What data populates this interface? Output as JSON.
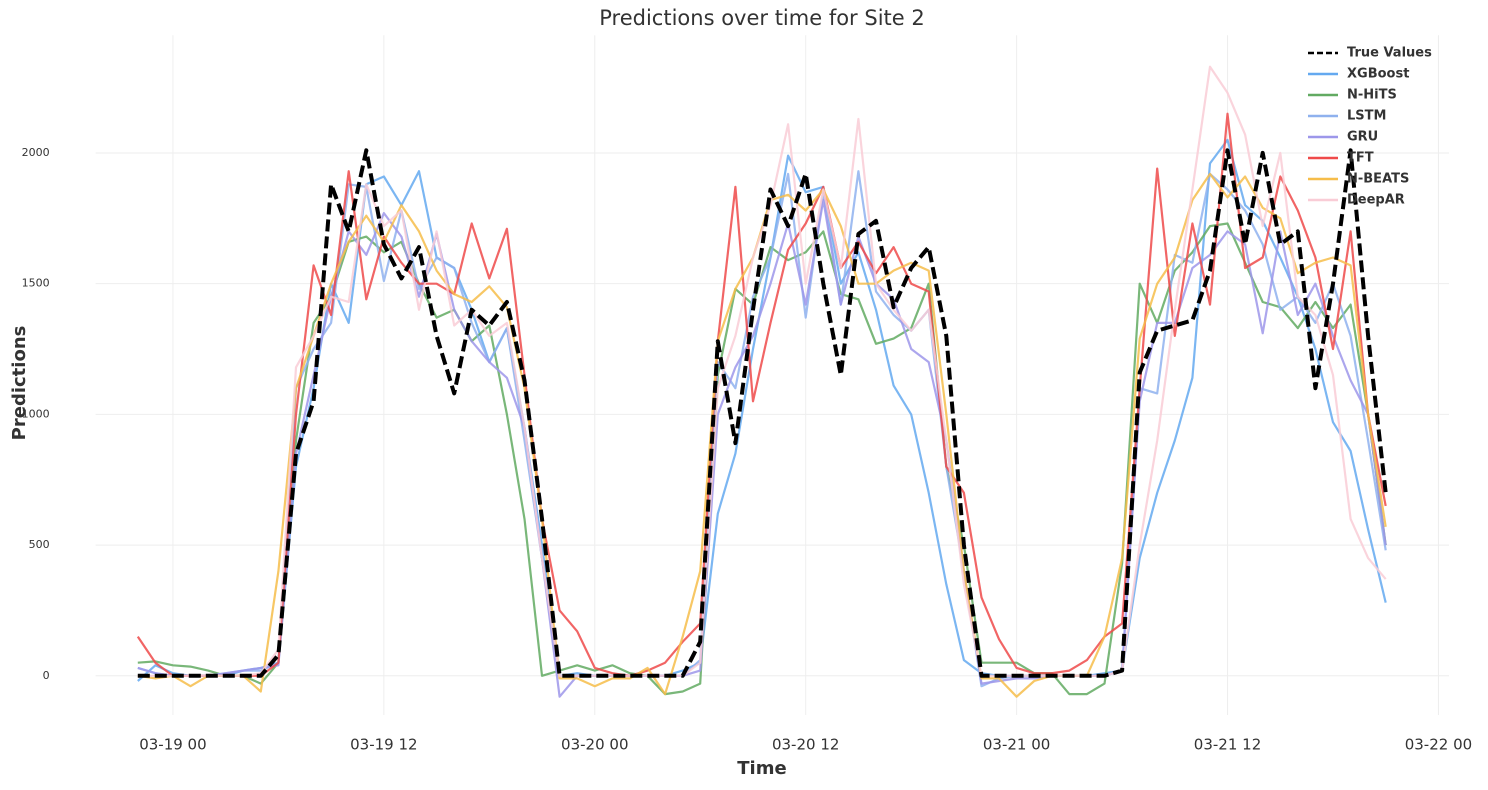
{
  "chart_data": {
    "type": "line",
    "title": "Predictions over time for Site 2",
    "x_label": "Time",
    "y_label": "Predictions",
    "x": [
      -2,
      -1,
      0,
      1,
      2,
      3,
      4,
      5,
      6,
      7,
      8,
      9,
      10,
      11,
      12,
      13,
      14,
      15,
      16,
      17,
      18,
      19,
      20,
      21,
      22,
      23,
      24,
      25,
      26,
      27,
      28,
      29,
      30,
      31,
      32,
      33,
      34,
      35,
      36,
      37,
      38,
      39,
      40,
      41,
      42,
      43,
      44,
      45,
      46,
      47,
      48,
      49,
      50,
      51,
      52,
      53,
      54,
      55,
      56,
      57,
      58,
      59,
      60,
      61,
      62,
      63,
      64,
      65,
      66,
      67,
      68,
      69
    ],
    "xlim": [
      -4.4,
      72.6
    ],
    "xticks": [
      {
        "value": 0,
        "label": "03-19 00"
      },
      {
        "value": 12,
        "label": "03-19 12"
      },
      {
        "value": 24,
        "label": "03-20 00"
      },
      {
        "value": 36,
        "label": "03-20 12"
      },
      {
        "value": 48,
        "label": "03-21 00"
      },
      {
        "value": 60,
        "label": "03-21 12"
      },
      {
        "value": 72,
        "label": "03-22 00"
      }
    ],
    "ylim": [
      -150,
      2450
    ],
    "yticks": [
      0,
      500,
      1000,
      1500,
      2000
    ],
    "grid": true,
    "legend": "upper right",
    "series": [
      {
        "name": "True Values",
        "color": "#000000",
        "style": "dashed",
        "values": [
          0,
          0,
          0,
          0,
          0,
          0,
          0,
          0,
          80,
          850,
          1050,
          1880,
          1700,
          2010,
          1650,
          1520,
          1640,
          1300,
          1080,
          1400,
          1340,
          1430,
          1130,
          600,
          0,
          0,
          0,
          0,
          0,
          0,
          0,
          0,
          130,
          1280,
          890,
          1400,
          1860,
          1720,
          1920,
          1500,
          1150,
          1690,
          1740,
          1410,
          1560,
          1640,
          1300,
          500,
          0,
          0,
          0,
          0,
          0,
          0,
          0,
          0,
          20,
          1160,
          1320,
          1340,
          1360,
          1550,
          2010,
          1650,
          2000,
          1650,
          1700,
          1100,
          1500,
          2010,
          1300,
          700
        ]
      },
      {
        "name": "XGBoost",
        "color": "#64a9f0",
        "style": "solid",
        "values": [
          -20,
          40,
          10,
          0,
          0,
          0,
          20,
          30,
          50,
          800,
          1100,
          1500,
          1350,
          1880,
          1910,
          1800,
          1930,
          1600,
          1560,
          1400,
          1200,
          1330,
          950,
          500,
          0,
          10,
          0,
          0,
          0,
          0,
          0,
          20,
          50,
          620,
          850,
          1250,
          1600,
          1990,
          1850,
          1870,
          1500,
          1620,
          1400,
          1110,
          1000,
          700,
          350,
          60,
          10,
          0,
          0,
          0,
          0,
          0,
          0,
          10,
          20,
          450,
          700,
          900,
          1140,
          1960,
          2050,
          1800,
          1740,
          1600,
          1450,
          1250,
          970,
          860,
          560,
          280
        ]
      },
      {
        "name": "N-HiTS",
        "color": "#62aa62",
        "style": "solid",
        "values": [
          50,
          55,
          40,
          35,
          20,
          0,
          0,
          -30,
          50,
          900,
          1350,
          1450,
          1660,
          1680,
          1620,
          1660,
          1500,
          1370,
          1400,
          1280,
          1340,
          1000,
          600,
          0,
          20,
          40,
          20,
          40,
          10,
          0,
          -70,
          -60,
          -30,
          1150,
          1480,
          1420,
          1640,
          1590,
          1620,
          1700,
          1460,
          1440,
          1270,
          1290,
          1330,
          1500,
          800,
          500,
          50,
          50,
          50,
          10,
          10,
          -70,
          -70,
          -30,
          430,
          1500,
          1350,
          1550,
          1620,
          1720,
          1730,
          1580,
          1430,
          1410,
          1330,
          1430,
          1330,
          1420,
          1000,
          500
        ]
      },
      {
        "name": "LSTM",
        "color": "#8fb1ee",
        "style": "solid",
        "values": [
          30,
          10,
          0,
          0,
          0,
          10,
          20,
          20,
          50,
          1100,
          1250,
          1350,
          1880,
          1870,
          1510,
          1780,
          1480,
          1600,
          1560,
          1350,
          1200,
          1330,
          900,
          450,
          0,
          0,
          0,
          0,
          0,
          0,
          0,
          0,
          60,
          1200,
          1100,
          1450,
          1600,
          1920,
          1370,
          1850,
          1420,
          1930,
          1470,
          1380,
          1320,
          1400,
          800,
          400,
          -40,
          -10,
          0,
          0,
          0,
          0,
          0,
          0,
          20,
          1100,
          1080,
          1610,
          1580,
          1920,
          1860,
          1780,
          1650,
          1400,
          1450,
          1350,
          1500,
          1300,
          900,
          480
        ]
      },
      {
        "name": "GRU",
        "color": "#9d97ea",
        "style": "solid",
        "values": [
          30,
          10,
          0,
          0,
          0,
          10,
          20,
          30,
          40,
          850,
          1150,
          1450,
          1700,
          1610,
          1770,
          1680,
          1450,
          1690,
          1400,
          1280,
          1200,
          1140,
          950,
          450,
          -80,
          0,
          0,
          0,
          0,
          0,
          0,
          0,
          20,
          1000,
          1180,
          1300,
          1500,
          1730,
          1420,
          1820,
          1420,
          1680,
          1500,
          1440,
          1250,
          1200,
          900,
          400,
          -30,
          -20,
          -10,
          -10,
          0,
          0,
          0,
          0,
          20,
          1050,
          1350,
          1350,
          1560,
          1610,
          1700,
          1650,
          1310,
          1700,
          1380,
          1500,
          1300,
          1130,
          1000,
          500
        ]
      },
      {
        "name": "TFT",
        "color": "#ef4a4a",
        "style": "solid",
        "values": [
          150,
          50,
          0,
          0,
          0,
          0,
          0,
          0,
          50,
          1000,
          1570,
          1380,
          1930,
          1440,
          1680,
          1580,
          1500,
          1500,
          1460,
          1730,
          1520,
          1710,
          1150,
          600,
          250,
          170,
          30,
          10,
          0,
          20,
          50,
          130,
          200,
          1280,
          1870,
          1050,
          1350,
          1630,
          1730,
          1870,
          1560,
          1660,
          1540,
          1640,
          1500,
          1470,
          800,
          700,
          300,
          140,
          30,
          10,
          10,
          20,
          60,
          150,
          200,
          1100,
          1940,
          1300,
          1730,
          1420,
          2150,
          1560,
          1600,
          1910,
          1780,
          1600,
          1250,
          1700,
          1000,
          650
        ]
      },
      {
        "name": "N-BEATS",
        "color": "#f6bd4a",
        "style": "solid",
        "values": [
          0,
          -10,
          0,
          -40,
          0,
          0,
          0,
          -60,
          400,
          1100,
          1300,
          1500,
          1660,
          1760,
          1660,
          1800,
          1700,
          1550,
          1460,
          1430,
          1490,
          1410,
          1100,
          600,
          -10,
          -10,
          -40,
          -10,
          -10,
          30,
          -70,
          150,
          400,
          1280,
          1480,
          1600,
          1820,
          1840,
          1780,
          1860,
          1720,
          1500,
          1500,
          1550,
          1580,
          1550,
          1000,
          400,
          -10,
          -10,
          -80,
          -20,
          0,
          0,
          0,
          150,
          450,
          1290,
          1500,
          1600,
          1820,
          1920,
          1830,
          1910,
          1790,
          1750,
          1540,
          1580,
          1600,
          1570,
          1000,
          570
        ]
      },
      {
        "name": "DeepAR",
        "color": "#f9ccd6",
        "style": "solid",
        "values": [
          0,
          0,
          0,
          0,
          0,
          0,
          0,
          10,
          100,
          1180,
          1300,
          1450,
          1430,
          1880,
          1720,
          1780,
          1400,
          1700,
          1340,
          1400,
          1300,
          1350,
          950,
          450,
          0,
          0,
          0,
          0,
          0,
          0,
          0,
          0,
          50,
          1100,
          1300,
          1600,
          1800,
          2110,
          1500,
          1860,
          1560,
          2130,
          1500,
          1400,
          1320,
          1400,
          900,
          350,
          0,
          0,
          0,
          0,
          0,
          0,
          0,
          0,
          20,
          500,
          900,
          1400,
          1860,
          2330,
          2230,
          2070,
          1720,
          2000,
          1450,
          1380,
          1150,
          600,
          450,
          370
        ]
      }
    ]
  }
}
